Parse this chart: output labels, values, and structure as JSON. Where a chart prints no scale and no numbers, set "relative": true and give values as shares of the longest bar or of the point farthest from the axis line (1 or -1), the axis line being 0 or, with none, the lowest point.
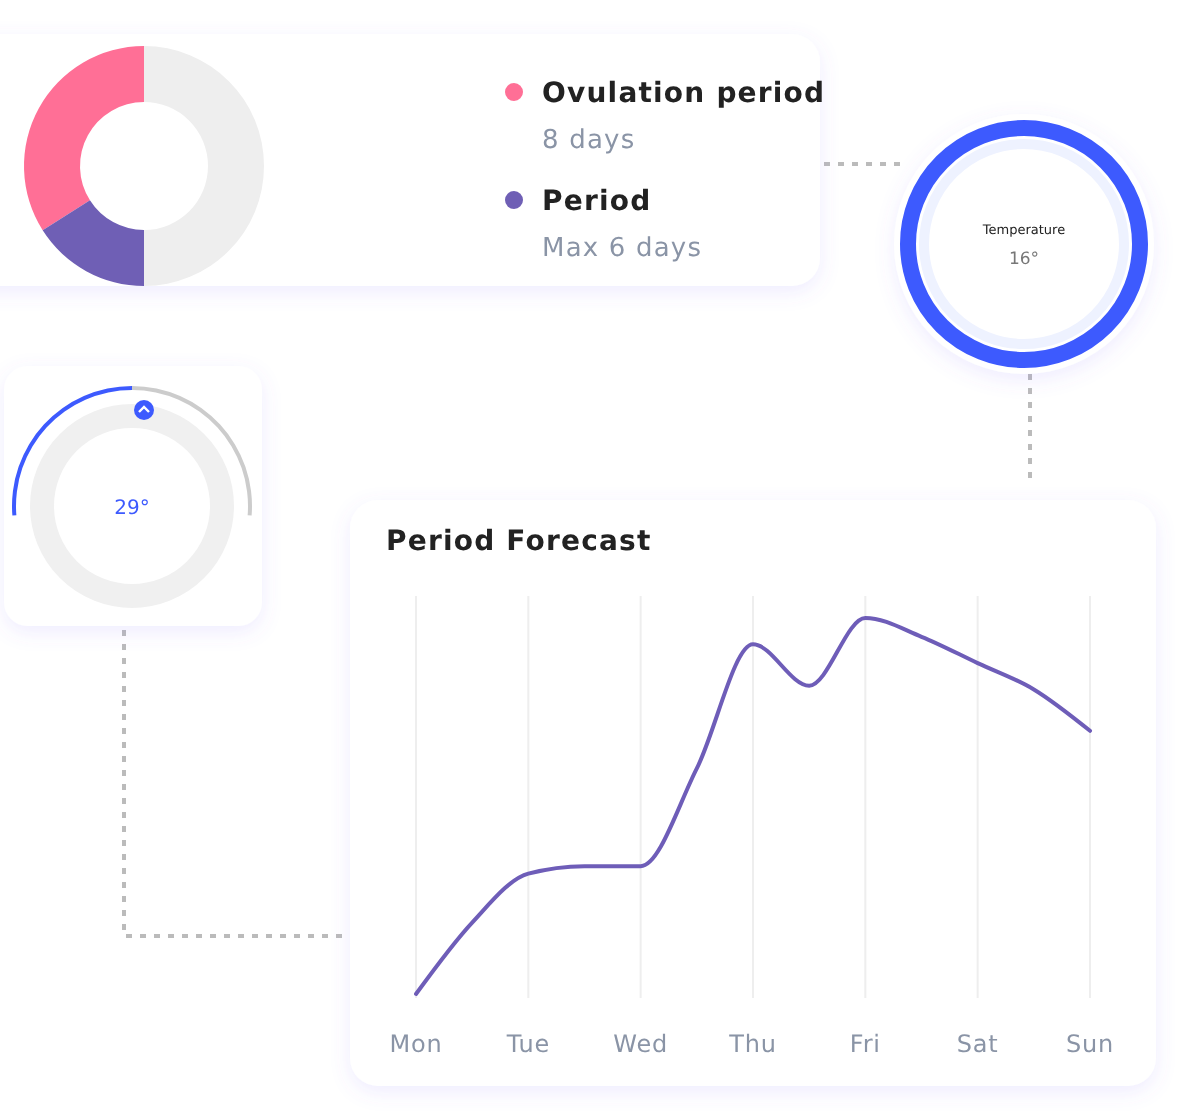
{
  "chart_data": [
    {
      "type": "donut",
      "categories": [
        "Ovulation period",
        "Period",
        null
      ],
      "values": [
        34,
        16,
        50
      ],
      "colors": [
        "#ff6f96",
        "#6f5fb5",
        "#eeeeee"
      ],
      "legend": "right",
      "annotations": [
        "8 days",
        "Max 6 days"
      ]
    },
    {
      "type": "other",
      "title": "Temperature",
      "annotations": [
        "16°"
      ]
    },
    {
      "type": "other",
      "annotations": [
        "29°"
      ]
    },
    {
      "type": "line",
      "title": "Period Forecast",
      "relative": true,
      "grid": "x",
      "marker": "none",
      "line_style": "solid",
      "categories": [
        "Mon",
        null,
        "Tue",
        null,
        "Wed",
        null,
        "Thu",
        null,
        "Fri",
        null,
        "Sat",
        null,
        "Sun"
      ],
      "series": [
        {
          "color": "#6e5db8",
          "values": [
            0,
            0.19,
            0.32,
            0.34,
            0.34,
            0.6,
            0.93,
            0.82,
            1,
            0.95,
            0.88,
            0.81,
            0.7
          ]
        }
      ]
    }
  ]
}
